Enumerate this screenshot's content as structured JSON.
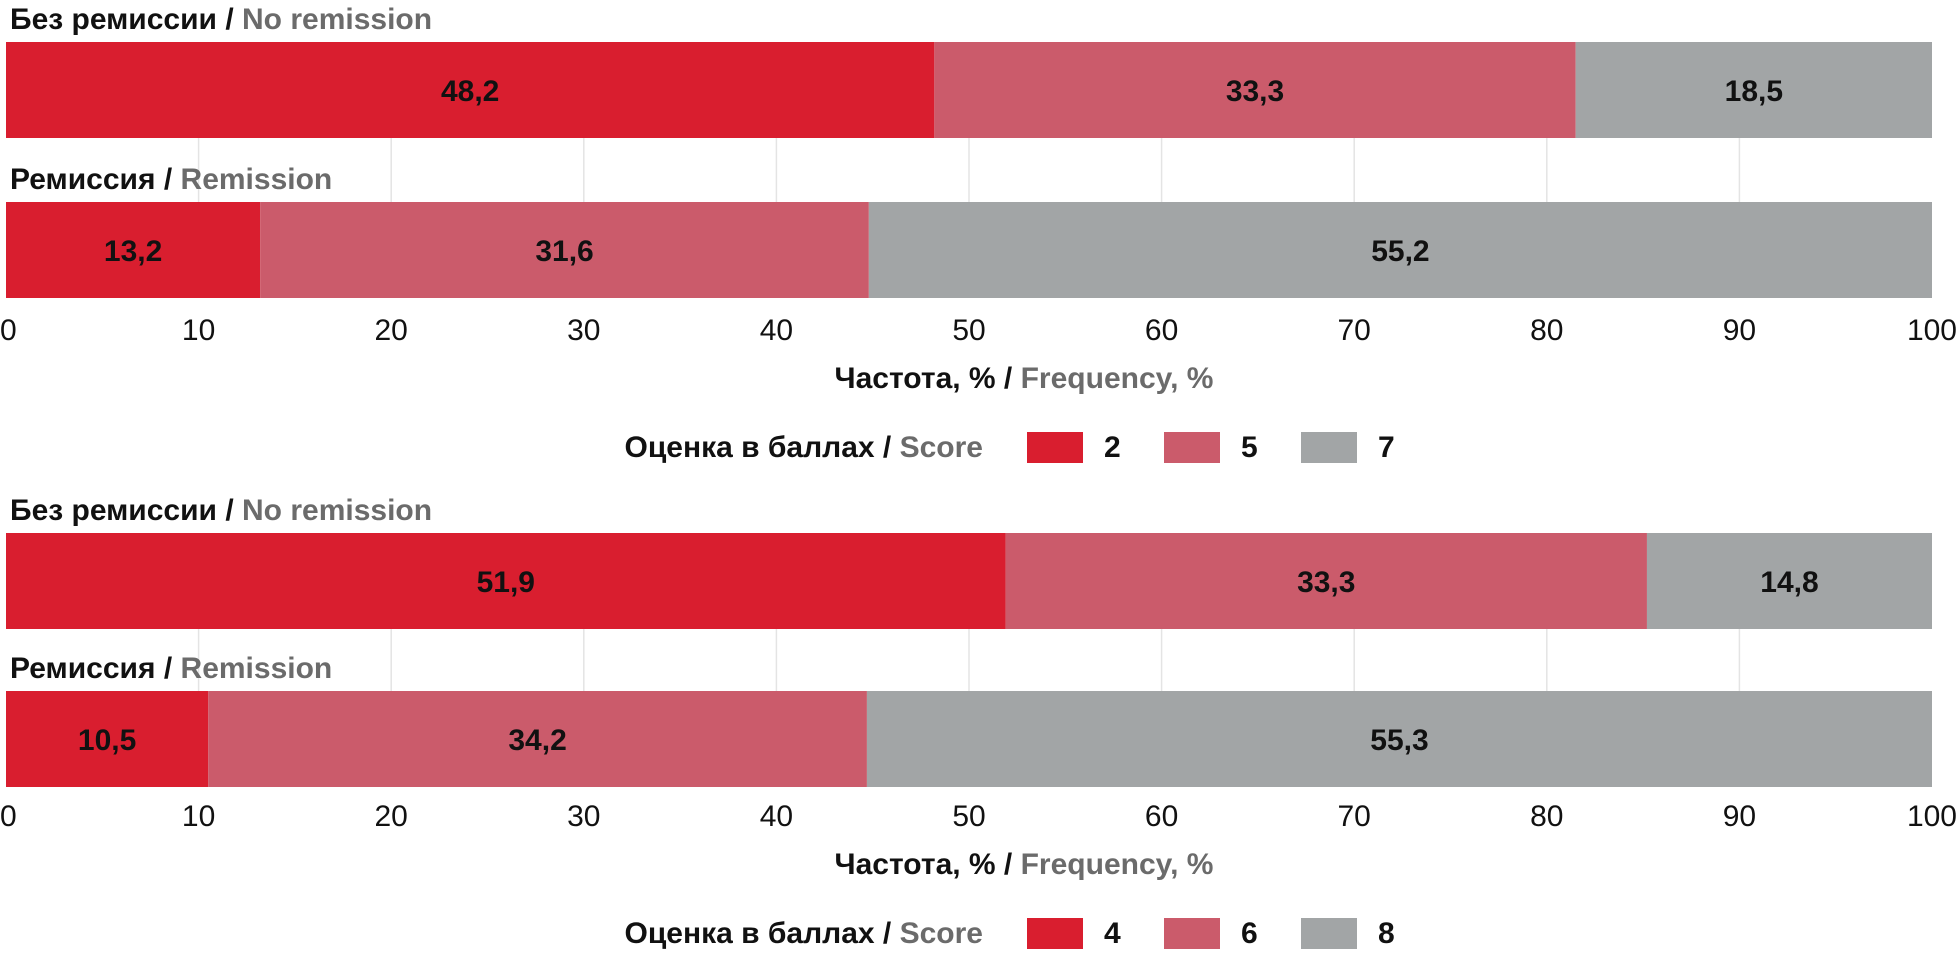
{
  "colors": {
    "red": "#d91e2f",
    "pink": "#cb5b6b",
    "grey": "#a2a5a6",
    "secondary_text": "#6b6b6b"
  },
  "axis_title": {
    "ru": "Частота, %",
    "sep": " / ",
    "en": "Frequency, %"
  },
  "legend_title": {
    "ru": "Оценка в баллах",
    "sep": " / ",
    "en": "Score"
  },
  "chart_data": [
    {
      "type": "bar",
      "orientation": "horizontal",
      "stacked": true,
      "xlim": [
        0,
        100
      ],
      "xticks": [
        0,
        10,
        20,
        30,
        40,
        50,
        60,
        70,
        80,
        90,
        100
      ],
      "xlabel": "Частота, % / Frequency, %",
      "legend_title": "Оценка в баллах / Score",
      "categories": [
        {
          "ru": "Без ремиссии",
          "en": "No remission"
        },
        {
          "ru": "Ремиссия",
          "en": "Remission"
        }
      ],
      "series": [
        {
          "name": "2",
          "color": "#d91e2f",
          "values": [
            48.2,
            13.2
          ],
          "labels": [
            "48,2",
            "13,2"
          ]
        },
        {
          "name": "5",
          "color": "#cb5b6b",
          "values": [
            33.3,
            31.6
          ],
          "labels": [
            "33,3",
            "31,6"
          ]
        },
        {
          "name": "7",
          "color": "#a2a5a6",
          "values": [
            18.5,
            55.2
          ],
          "labels": [
            "18,5",
            "55,2"
          ]
        }
      ]
    },
    {
      "type": "bar",
      "orientation": "horizontal",
      "stacked": true,
      "xlim": [
        0,
        100
      ],
      "xticks": [
        0,
        10,
        20,
        30,
        40,
        50,
        60,
        70,
        80,
        90,
        100
      ],
      "xlabel": "Частота, % / Frequency, %",
      "legend_title": "Оценка в баллах / Score",
      "categories": [
        {
          "ru": "Без ремиссии",
          "en": "No remission"
        },
        {
          "ru": "Ремиссия",
          "en": "Remission"
        }
      ],
      "series": [
        {
          "name": "4",
          "color": "#d91e2f",
          "values": [
            51.9,
            10.5
          ],
          "labels": [
            "51,9",
            "10,5"
          ]
        },
        {
          "name": "6",
          "color": "#cb5b6b",
          "values": [
            33.3,
            34.2
          ],
          "labels": [
            "33,3",
            "34,2"
          ]
        },
        {
          "name": "8",
          "color": "#a2a5a6",
          "values": [
            14.8,
            55.3
          ],
          "labels": [
            "14,8",
            "55,3"
          ]
        }
      ]
    }
  ]
}
